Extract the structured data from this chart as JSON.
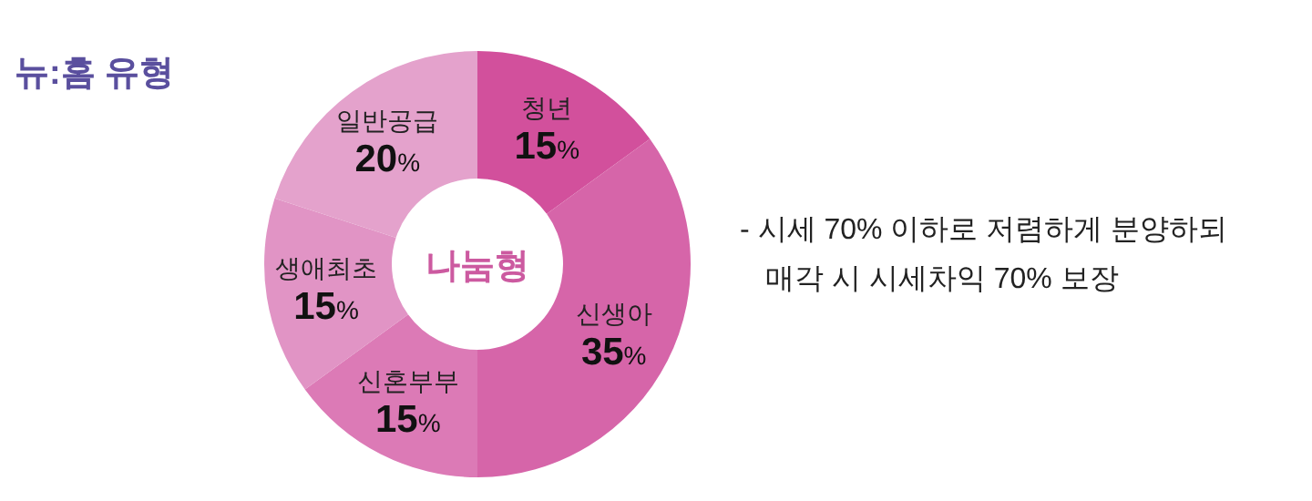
{
  "chart_data": {
    "type": "donut",
    "title": "뉴:홈 유형",
    "categories": [
      "청년",
      "신생아",
      "신혼부부",
      "생애최초",
      "일반공급"
    ],
    "values": [
      15,
      35,
      15,
      15,
      20
    ],
    "value_labels": [
      "15%",
      "35%",
      "15%",
      "15%",
      "20%"
    ],
    "colors": [
      "#d2509c",
      "#d665a9",
      "#dc7ab6",
      "#e194c5",
      "#e4a2cc"
    ],
    "annotations": [
      "나눔형",
      "- 시세 70% 이하로 저렴하게 분양하되",
      "매각 시 시세차익 70% 보장"
    ]
  }
}
